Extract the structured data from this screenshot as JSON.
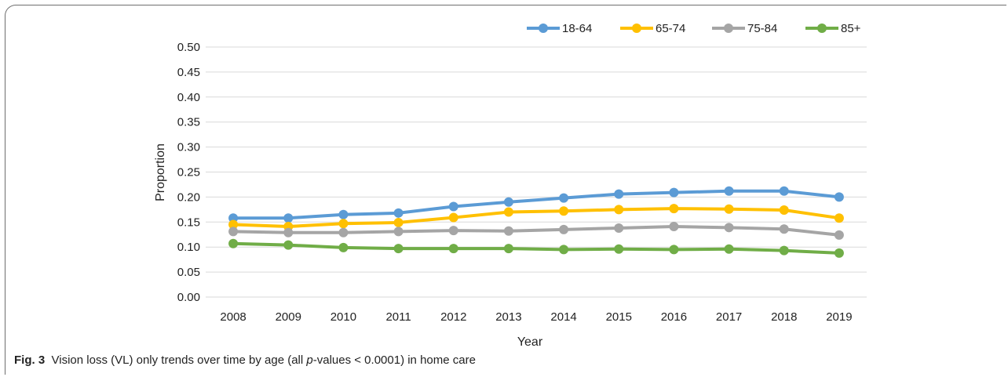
{
  "chart_data": {
    "type": "line",
    "xlabel": "Year",
    "ylabel": "Proportion",
    "ylim": [
      0,
      0.5
    ],
    "yticks": [
      "0.00",
      "0.05",
      "0.10",
      "0.15",
      "0.20",
      "0.25",
      "0.30",
      "0.35",
      "0.40",
      "0.45",
      "0.50"
    ],
    "categories": [
      "2008",
      "2009",
      "2010",
      "2011",
      "2012",
      "2013",
      "2014",
      "2015",
      "2016",
      "2017",
      "2018",
      "2019"
    ],
    "legend_position": "top-right",
    "grid": "horizontal",
    "series": [
      {
        "name": "18-64",
        "color": "#5B9BD5",
        "values": [
          0.158,
          0.158,
          0.165,
          0.168,
          0.181,
          0.19,
          0.198,
          0.206,
          0.209,
          0.212,
          0.212,
          0.2
        ]
      },
      {
        "name": "65-74",
        "color": "#FFC000",
        "values": [
          0.145,
          0.141,
          0.147,
          0.149,
          0.159,
          0.17,
          0.172,
          0.175,
          0.177,
          0.176,
          0.174,
          0.158
        ]
      },
      {
        "name": "75-84",
        "color": "#A5A5A5",
        "values": [
          0.131,
          0.129,
          0.129,
          0.131,
          0.133,
          0.132,
          0.135,
          0.138,
          0.141,
          0.139,
          0.136,
          0.124
        ]
      },
      {
        "name": "85+",
        "color": "#70AD47",
        "values": [
          0.107,
          0.104,
          0.099,
          0.097,
          0.097,
          0.097,
          0.095,
          0.096,
          0.095,
          0.096,
          0.093,
          0.088
        ]
      }
    ]
  },
  "caption": {
    "label": "Fig. 3",
    "text_before": "Vision loss (VL) only trends over time by age (all ",
    "italic": "p",
    "text_after": "-values < 0.0001) in home care"
  }
}
